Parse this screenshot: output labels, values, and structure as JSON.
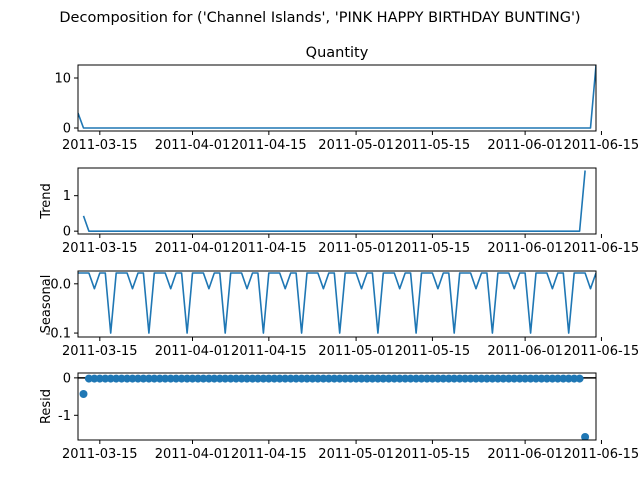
{
  "figure_title": "Decomposition for ('Channel Islands', 'PINK HAPPY BIRTHDAY BUNTING')",
  "x_tick_labels": [
    "2011-03-15",
    "2011-04-01",
    "2011-04-15",
    "2011-05-01",
    "2011-05-15",
    "2011-06-01",
    "2011-06-15"
  ],
  "colors": {
    "series": "#1f77b4",
    "axis": "#000000"
  },
  "chart_data": [
    {
      "type": "line",
      "title": "Quantity",
      "ylabel": "",
      "ylim": [
        -0.6,
        12.6
      ],
      "y_ticks": [
        0,
        10
      ],
      "y_tick_labels": [
        "0",
        "10"
      ],
      "x": [
        "2011-03-11",
        "2011-03-12",
        "2011-06-13",
        "2011-06-14"
      ],
      "values": [
        3,
        0,
        0,
        12.5
      ]
    },
    {
      "type": "line",
      "title": "",
      "ylabel": "Trend",
      "ylim": [
        -0.08,
        1.78
      ],
      "y_ticks": [
        0,
        1
      ],
      "y_tick_labels": [
        "0",
        "1"
      ],
      "x": [
        "2011-03-12",
        "2011-03-13",
        "2011-06-11",
        "2011-06-12"
      ],
      "values": [
        0.43,
        0,
        0,
        1.71
      ]
    },
    {
      "type": "line",
      "title": "",
      "ylabel": "Seasonal",
      "ylim": [
        -0.108,
        0.026
      ],
      "y_ticks": [
        0.0,
        -0.1
      ],
      "y_tick_labels": [
        "0.0",
        "-0.1"
      ],
      "x_start": "2011-03-11",
      "x_end": "2011-06-14",
      "weekly_pattern": [
        0.022,
        0.022,
        0.022,
        -0.01,
        0.022,
        0.022,
        -0.1
      ],
      "pattern_start_offset": 0
    },
    {
      "type": "scatter",
      "title": "",
      "ylabel": "Resid",
      "ylim": [
        -1.66,
        0.13
      ],
      "y_ticks": [
        0,
        -1
      ],
      "y_tick_labels": [
        "0",
        "-1"
      ],
      "baseline": 0,
      "x_start": "2011-03-12",
      "x_end": "2011-06-12",
      "default_value": -0.02,
      "outliers": [
        {
          "x": "2011-03-12",
          "y": -0.43
        },
        {
          "x": "2011-06-12",
          "y": -1.58
        }
      ]
    }
  ]
}
